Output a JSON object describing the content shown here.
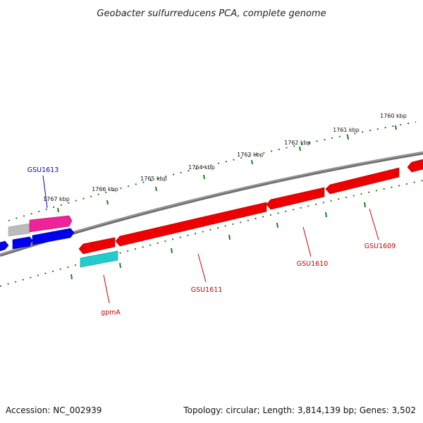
{
  "title": "Geobacter sulfurreducens PCA, complete genome",
  "footer": {
    "accession": "Accession: NC_002939",
    "summary": "Topology: circular; Length: 3,814,139 bp; Genes: 3,502"
  },
  "colors": {
    "backbone": "#808080",
    "ticks": "#1f7f1f",
    "red_gene": "#ee0000",
    "blue_gene": "#0000ee",
    "magenta_gene": "#ee2299",
    "cyan_gene": "#22cccc",
    "gray_gene": "#bbbbbb",
    "red_label": "#cc0000",
    "blue_label": "#0000cc"
  },
  "ticks": [
    {
      "label": "1760 kbp"
    },
    {
      "label": "1761 kbp"
    },
    {
      "label": "1762 kbp"
    },
    {
      "label": "1763 kbp"
    },
    {
      "label": "1764 kbp"
    },
    {
      "label": "1765 kbp"
    },
    {
      "label": "1766 kbp"
    },
    {
      "label": "1767 kbp"
    }
  ],
  "genes": [
    {
      "label": "GSU1613"
    },
    {
      "label": "gpmA"
    },
    {
      "label": "GSU1611"
    },
    {
      "label": "GSU1610"
    },
    {
      "label": "GSU1609"
    }
  ]
}
